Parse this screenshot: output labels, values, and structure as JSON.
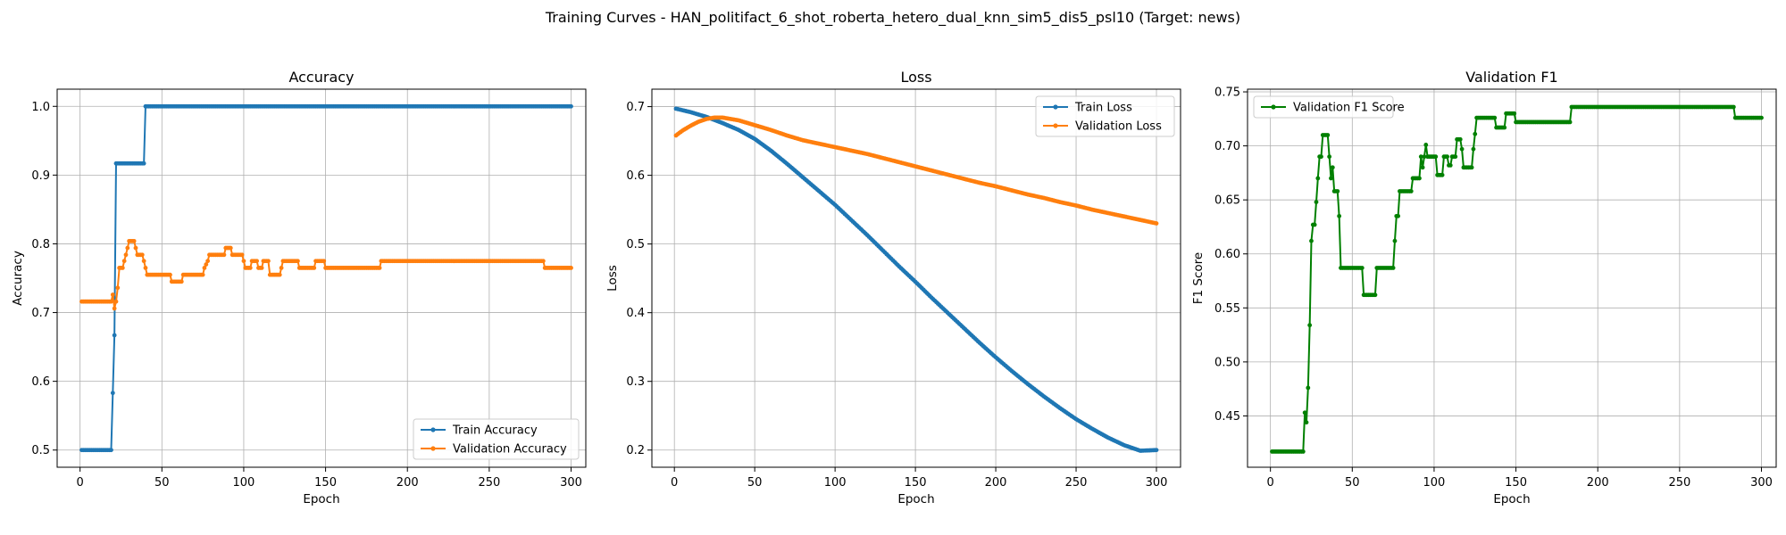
{
  "figure": {
    "suptitle": "Training Curves - HAN_politifact_6_shot_roberta_hetero_dual_knn_sim5_dis5_psl10 (Target: news)"
  },
  "chart_data": [
    {
      "type": "line",
      "title": "Accuracy",
      "xlabel": "Epoch",
      "ylabel": "Accuracy",
      "xlim": [
        -14,
        309
      ],
      "ylim": [
        0.475,
        1.025
      ],
      "xticks": [
        0,
        50,
        100,
        150,
        200,
        250,
        300
      ],
      "yticks": [
        0.5,
        0.6,
        0.7,
        0.8,
        0.9,
        1.0
      ],
      "ytick_labels": [
        "0.5",
        "0.6",
        "0.7",
        "0.8",
        "0.9",
        "1.0"
      ],
      "grid": true,
      "legend_position": "lower-right",
      "series": [
        {
          "name": "Train Accuracy",
          "color": "#1f77b4",
          "points": [
            [
              1,
              0.5
            ],
            [
              19,
              0.5
            ],
            [
              20,
              0.583
            ],
            [
              21,
              0.667
            ],
            [
              22,
              0.917
            ],
            [
              39,
              0.917
            ],
            [
              40,
              1.0
            ],
            [
              300,
              1.0
            ]
          ]
        },
        {
          "name": "Validation Accuracy",
          "color": "#ff7f0e",
          "points": [
            [
              1,
              0.716
            ],
            [
              19,
              0.716
            ],
            [
              20,
              0.726
            ],
            [
              21,
              0.706
            ],
            [
              22,
              0.716
            ],
            [
              23,
              0.736
            ],
            [
              24,
              0.765
            ],
            [
              26,
              0.765
            ],
            [
              27,
              0.775
            ],
            [
              28,
              0.784
            ],
            [
              29,
              0.794
            ],
            [
              30,
              0.804
            ],
            [
              33,
              0.804
            ],
            [
              34,
              0.794
            ],
            [
              35,
              0.784
            ],
            [
              38,
              0.784
            ],
            [
              39,
              0.775
            ],
            [
              41,
              0.755
            ],
            [
              55,
              0.755
            ],
            [
              56,
              0.745
            ],
            [
              62,
              0.745
            ],
            [
              63,
              0.755
            ],
            [
              75,
              0.755
            ],
            [
              76,
              0.765
            ],
            [
              78,
              0.775
            ],
            [
              79,
              0.784
            ],
            [
              88,
              0.784
            ],
            [
              89,
              0.794
            ],
            [
              92,
              0.794
            ],
            [
              93,
              0.784
            ],
            [
              99,
              0.784
            ],
            [
              100,
              0.775
            ],
            [
              101,
              0.765
            ],
            [
              104,
              0.765
            ],
            [
              105,
              0.775
            ],
            [
              108,
              0.775
            ],
            [
              109,
              0.765
            ],
            [
              111,
              0.765
            ],
            [
              112,
              0.775
            ],
            [
              115,
              0.775
            ],
            [
              116,
              0.755
            ],
            [
              122,
              0.755
            ],
            [
              123,
              0.765
            ],
            [
              124,
              0.775
            ],
            [
              133,
              0.775
            ],
            [
              134,
              0.765
            ],
            [
              143,
              0.765
            ],
            [
              144,
              0.775
            ],
            [
              149,
              0.775
            ],
            [
              150,
              0.765
            ],
            [
              183,
              0.765
            ],
            [
              184,
              0.775
            ],
            [
              283,
              0.775
            ],
            [
              284,
              0.765
            ],
            [
              300,
              0.765
            ]
          ]
        }
      ]
    },
    {
      "type": "line",
      "title": "Loss",
      "xlabel": "Epoch",
      "ylabel": "Loss",
      "xlim": [
        -14,
        315
      ],
      "ylim": [
        0.175,
        0.7254
      ],
      "xticks": [
        0,
        50,
        100,
        150,
        200,
        250,
        300
      ],
      "yticks": [
        0.2,
        0.3,
        0.4,
        0.5,
        0.6,
        0.7
      ],
      "ytick_labels": [
        "0.2",
        "0.3",
        "0.4",
        "0.5",
        "0.6",
        "0.7"
      ],
      "grid": true,
      "legend_position": "upper-right",
      "series": [
        {
          "name": "Train Loss",
          "color": "#1f77b4",
          "points": [
            [
              1,
              0.697
            ],
            [
              10,
              0.692
            ],
            [
              20,
              0.685
            ],
            [
              30,
              0.676
            ],
            [
              40,
              0.666
            ],
            [
              50,
              0.653
            ],
            [
              60,
              0.636
            ],
            [
              70,
              0.617
            ],
            [
              80,
              0.597
            ],
            [
              90,
              0.577
            ],
            [
              100,
              0.557
            ],
            [
              110,
              0.535
            ],
            [
              120,
              0.513
            ],
            [
              130,
              0.49
            ],
            [
              140,
              0.467
            ],
            [
              150,
              0.445
            ],
            [
              160,
              0.422
            ],
            [
              170,
              0.4
            ],
            [
              180,
              0.378
            ],
            [
              190,
              0.356
            ],
            [
              200,
              0.335
            ],
            [
              210,
              0.315
            ],
            [
              220,
              0.296
            ],
            [
              230,
              0.278
            ],
            [
              240,
              0.261
            ],
            [
              250,
              0.245
            ],
            [
              260,
              0.231
            ],
            [
              270,
              0.218
            ],
            [
              280,
              0.207
            ],
            [
              290,
              0.199
            ],
            [
              300,
              0.2
            ]
          ]
        },
        {
          "name": "Validation Loss",
          "color": "#ff7f0e",
          "points": [
            [
              1,
              0.658
            ],
            [
              5,
              0.665
            ],
            [
              10,
              0.672
            ],
            [
              15,
              0.678
            ],
            [
              20,
              0.682
            ],
            [
              25,
              0.684
            ],
            [
              30,
              0.684
            ],
            [
              40,
              0.68
            ],
            [
              50,
              0.673
            ],
            [
              60,
              0.666
            ],
            [
              70,
              0.658
            ],
            [
              80,
              0.651
            ],
            [
              90,
              0.646
            ],
            [
              100,
              0.641
            ],
            [
              110,
              0.636
            ],
            [
              120,
              0.631
            ],
            [
              130,
              0.625
            ],
            [
              140,
              0.619
            ],
            [
              150,
              0.613
            ],
            [
              160,
              0.607
            ],
            [
              170,
              0.601
            ],
            [
              180,
              0.595
            ],
            [
              190,
              0.589
            ],
            [
              200,
              0.584
            ],
            [
              210,
              0.578
            ],
            [
              220,
              0.572
            ],
            [
              230,
              0.567
            ],
            [
              240,
              0.561
            ],
            [
              250,
              0.556
            ],
            [
              260,
              0.55
            ],
            [
              270,
              0.545
            ],
            [
              280,
              0.54
            ],
            [
              290,
              0.535
            ],
            [
              300,
              0.53
            ]
          ]
        }
      ]
    },
    {
      "type": "line",
      "title": "Validation F1",
      "xlabel": "Epoch",
      "ylabel": "F1 Score",
      "xlim": [
        -14,
        309
      ],
      "ylim": [
        0.4025,
        0.7525
      ],
      "xticks": [
        0,
        50,
        100,
        150,
        200,
        250,
        300
      ],
      "yticks": [
        0.45,
        0.5,
        0.55,
        0.6,
        0.65,
        0.7,
        0.75
      ],
      "ytick_labels": [
        "0.45",
        "0.50",
        "0.55",
        "0.60",
        "0.65",
        "0.70",
        "0.75"
      ],
      "grid": true,
      "legend_position": "upper-left",
      "series": [
        {
          "name": "Validation F1 Score",
          "color": "#008000",
          "points": [
            [
              1,
              0.417
            ],
            [
              19,
              0.417
            ],
            [
              20,
              0.417
            ],
            [
              21,
              0.453
            ],
            [
              22,
              0.444
            ],
            [
              23,
              0.476
            ],
            [
              24,
              0.534
            ],
            [
              25,
              0.612
            ],
            [
              26,
              0.627
            ],
            [
              27,
              0.627
            ],
            [
              28,
              0.648
            ],
            [
              29,
              0.67
            ],
            [
              30,
              0.69
            ],
            [
              31,
              0.69
            ],
            [
              32,
              0.71
            ],
            [
              35,
              0.71
            ],
            [
              36,
              0.69
            ],
            [
              37,
              0.67
            ],
            [
              38,
              0.68
            ],
            [
              39,
              0.658
            ],
            [
              41,
              0.658
            ],
            [
              42,
              0.635
            ],
            [
              43,
              0.587
            ],
            [
              56,
              0.587
            ],
            [
              57,
              0.562
            ],
            [
              64,
              0.562
            ],
            [
              65,
              0.587
            ],
            [
              75,
              0.587
            ],
            [
              76,
              0.612
            ],
            [
              77,
              0.635
            ],
            [
              78,
              0.635
            ],
            [
              79,
              0.658
            ],
            [
              86,
              0.658
            ],
            [
              87,
              0.67
            ],
            [
              91,
              0.67
            ],
            [
              92,
              0.69
            ],
            [
              93,
              0.68
            ],
            [
              94,
              0.69
            ],
            [
              95,
              0.701
            ],
            [
              96,
              0.69
            ],
            [
              101,
              0.69
            ],
            [
              102,
              0.673
            ],
            [
              105,
              0.673
            ],
            [
              106,
              0.69
            ],
            [
              108,
              0.69
            ],
            [
              109,
              0.682
            ],
            [
              110,
              0.682
            ],
            [
              111,
              0.69
            ],
            [
              113,
              0.69
            ],
            [
              114,
              0.706
            ],
            [
              116,
              0.706
            ],
            [
              117,
              0.697
            ],
            [
              118,
              0.68
            ],
            [
              123,
              0.68
            ],
            [
              124,
              0.697
            ],
            [
              125,
              0.711
            ],
            [
              126,
              0.726
            ],
            [
              137,
              0.726
            ],
            [
              138,
              0.717
            ],
            [
              143,
              0.717
            ],
            [
              144,
              0.73
            ],
            [
              149,
              0.73
            ],
            [
              150,
              0.722
            ],
            [
              183,
              0.722
            ],
            [
              184,
              0.736
            ],
            [
              283,
              0.736
            ],
            [
              284,
              0.726
            ],
            [
              300,
              0.726
            ]
          ]
        }
      ]
    }
  ]
}
